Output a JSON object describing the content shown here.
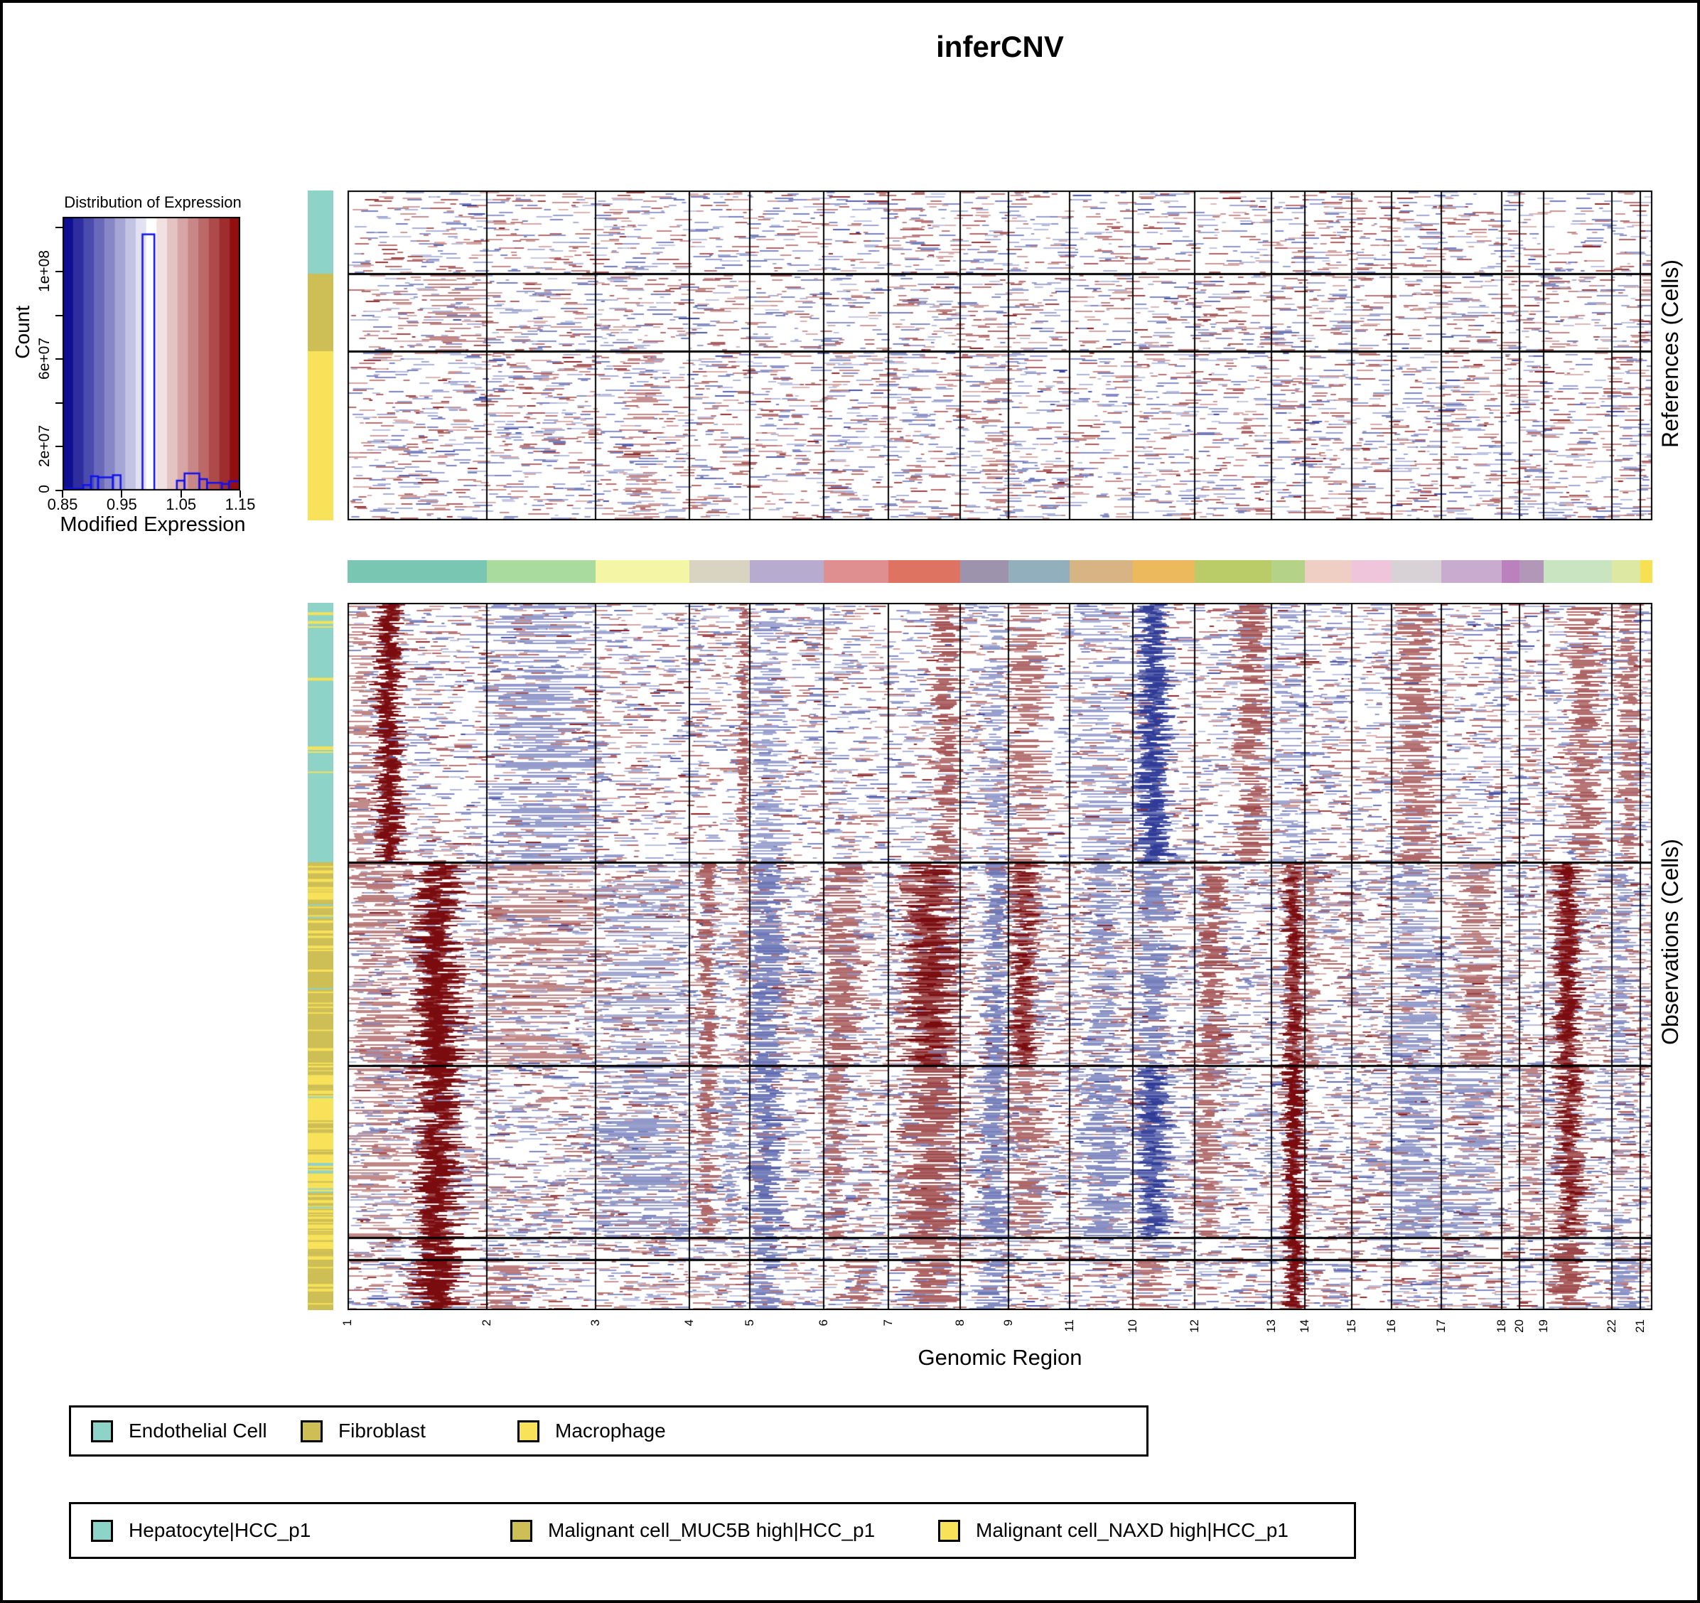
{
  "chart_data": {
    "type": "heatmap",
    "title": "inferCNV",
    "xlabel": "Genomic Region",
    "panel_labels": {
      "top": "References (Cells)",
      "bottom": "Observations (Cells)"
    },
    "color_scale": {
      "min": 0.85,
      "mid": 1.0,
      "max": 1.15,
      "low_color": "#00008B",
      "mid_color": "#FFFFFF",
      "high_color": "#8B0000",
      "steps": 17
    },
    "distribution": {
      "title": "Distribution of Expression",
      "xlabel": "Modified Expression",
      "ylabel": "Count",
      "xticks": [
        "0.85",
        "0.95",
        "1.05",
        "1.15"
      ],
      "xtick_values": [
        0.85,
        0.95,
        1.05,
        1.15
      ],
      "yticks": [
        "0",
        "2e+07",
        "6e+07",
        "1e+08"
      ],
      "ytick_values": [
        0,
        20000000,
        60000000,
        100000000
      ],
      "minor_ytick_values": [
        40000000,
        80000000,
        120000000
      ],
      "ymax": 125000000,
      "outline_color": "#1111EE",
      "bins": [
        [
          0.85,
          0.885,
          800000
        ],
        [
          0.885,
          0.898,
          2500000
        ],
        [
          0.898,
          0.91,
          6500000
        ],
        [
          0.91,
          0.935,
          6000000
        ],
        [
          0.935,
          0.948,
          7000000
        ],
        [
          0.948,
          0.985,
          200000
        ],
        [
          0.985,
          1.005,
          117000000
        ],
        [
          1.005,
          1.043,
          150000
        ],
        [
          1.043,
          1.056,
          4500000
        ],
        [
          1.056,
          1.081,
          7800000
        ],
        [
          1.081,
          1.094,
          5200000
        ],
        [
          1.094,
          1.119,
          3500000
        ],
        [
          1.119,
          1.131,
          3000000
        ],
        [
          1.131,
          1.15,
          4200000
        ]
      ]
    },
    "chromosomes": [
      {
        "label": "1",
        "width": 196,
        "color": "#79C7B2"
      },
      {
        "label": "2",
        "width": 153,
        "color": "#A9DB9F"
      },
      {
        "label": "3",
        "width": 132,
        "color": "#F5F5A6"
      },
      {
        "label": "4",
        "width": 85,
        "color": "#D9D3C2"
      },
      {
        "label": "5",
        "width": 104,
        "color": "#B7ABD0"
      },
      {
        "label": "6",
        "width": 91,
        "color": "#DF8F90"
      },
      {
        "label": "7",
        "width": 101,
        "color": "#DF7361"
      },
      {
        "label": "8",
        "width": 68,
        "color": "#9E93AD"
      },
      {
        "label": "9",
        "width": 86,
        "color": "#92AFBE"
      },
      {
        "label": "11",
        "width": 89,
        "color": "#D8B384"
      },
      {
        "label": "10",
        "width": 87,
        "color": "#ECB95D"
      },
      {
        "label": "12",
        "width": 108,
        "color": "#B9CC68"
      },
      {
        "label": "13",
        "width": 47,
        "color": "#B5D289"
      },
      {
        "label": "14",
        "width": 66,
        "color": "#EFCEC3"
      },
      {
        "label": "15",
        "width": 56,
        "color": "#EFC5DC"
      },
      {
        "label": "16",
        "width": 70,
        "color": "#D8D1D6"
      },
      {
        "label": "17",
        "width": 85,
        "color": "#C8ABCE"
      },
      {
        "label": "18",
        "width": 25,
        "color": "#BB81BF"
      },
      {
        "label": "20",
        "width": 34,
        "color": "#B297B9"
      },
      {
        "label": "19",
        "width": 96,
        "color": "#C8E4C1"
      },
      {
        "label": "22",
        "width": 40,
        "color": "#DDE8A2"
      },
      {
        "label": "21",
        "width": 17,
        "color": "#F7E052"
      }
    ],
    "reference_groups": [
      {
        "name": "Endothelial Cell",
        "color": "#8DD3C7",
        "y0": 0.0,
        "y1": 0.252,
        "noise": [
          7,
          6
        ],
        "stripes": [],
        "bands": []
      },
      {
        "name": "Fibroblast",
        "color": "#CDBE55",
        "y0": 0.252,
        "y1": 0.487,
        "noise": [
          8,
          6
        ],
        "stripes": [],
        "bands": [
          {
            "c": "1",
            "x0": 0.55,
            "x1": 1.0,
            "col": "r",
            "s": 0.2
          }
        ]
      },
      {
        "name": "Macrophage",
        "color": "#F7E25A",
        "y0": 0.487,
        "y1": 1.0,
        "noise": [
          8,
          7
        ],
        "stripes": [],
        "bands": [
          {
            "c": "3",
            "x0": 0.3,
            "x1": 0.7,
            "col": "r",
            "s": 0.15
          },
          {
            "c": "8",
            "x0": 0.5,
            "x1": 1.0,
            "col": "r",
            "s": 0.15
          }
        ]
      }
    ],
    "observation_groups": [
      {
        "name": "Hepatocyte|HCC_p1",
        "color": "#8DD3C7",
        "y0": 0.0,
        "y1": 0.367,
        "noise": [
          9,
          9
        ],
        "stripes": [
          [
            "#F7E25A",
            9
          ]
        ],
        "bands": [
          {
            "c": "1",
            "x0": 0.2,
            "x1": 0.4,
            "col": "r",
            "s": 0.95
          },
          {
            "c": "1",
            "x0": 0.0,
            "x1": 0.2,
            "col": "r",
            "s": 0.2
          },
          {
            "c": "2",
            "x0": 0.0,
            "x1": 1.0,
            "col": "b",
            "s": 0.25
          },
          {
            "c": "4",
            "x0": 0.8,
            "x1": 1.0,
            "col": "r",
            "s": 0.5
          },
          {
            "c": "5",
            "x0": 0.0,
            "x1": 0.5,
            "col": "b",
            "s": 0.2
          },
          {
            "c": "7",
            "x0": 0.6,
            "x1": 1.0,
            "col": "r",
            "s": 0.5
          },
          {
            "c": "8",
            "x0": 0.5,
            "x1": 1.0,
            "col": "b",
            "s": 0.2
          },
          {
            "c": "9",
            "x0": 0.0,
            "x1": 0.6,
            "col": "r",
            "s": 0.35
          },
          {
            "c": "11",
            "x0": 0.0,
            "x1": 1.0,
            "col": "b",
            "s": 0.2
          },
          {
            "c": "10",
            "x0": 0.05,
            "x1": 0.6,
            "col": "b",
            "s": 0.85
          },
          {
            "c": "12",
            "x0": 0.55,
            "x1": 0.95,
            "col": "r",
            "s": 0.5
          },
          {
            "c": "13",
            "x0": 0.0,
            "x1": 1.0,
            "col": "b",
            "s": 0.15
          },
          {
            "c": "16",
            "x0": 0.1,
            "x1": 0.9,
            "col": "r",
            "s": 0.4
          },
          {
            "c": "19",
            "x0": 0.35,
            "x1": 0.85,
            "col": "r",
            "s": 0.45
          },
          {
            "c": "22",
            "x0": 0.2,
            "x1": 1.0,
            "col": "r",
            "s": 0.4
          }
        ]
      },
      {
        "name": "Malignant cell_MUC5B high|HCC_p1",
        "color": "#CDBE55",
        "y0": 0.367,
        "y1": 0.654,
        "noise": [
          15,
          11
        ],
        "stripes": [
          [
            "#F7E25A",
            30
          ],
          [
            "#8DD3C7",
            3
          ]
        ],
        "bands": [
          {
            "c": "1",
            "x0": 0.47,
            "x1": 0.82,
            "col": "r",
            "s": 1.0
          },
          {
            "c": "1",
            "x0": 0.0,
            "x1": 0.45,
            "col": "r",
            "s": 0.25
          },
          {
            "c": "2",
            "x0": 0.0,
            "x1": 1.0,
            "col": "r",
            "s": 0.2
          },
          {
            "c": "3",
            "x0": 0.0,
            "x1": 1.0,
            "col": "b",
            "s": 0.15
          },
          {
            "c": "4",
            "x0": 0.15,
            "x1": 0.45,
            "col": "r",
            "s": 0.5
          },
          {
            "c": "4",
            "x0": 0.8,
            "x1": 1.0,
            "col": "r",
            "s": 0.3
          },
          {
            "c": "5",
            "x0": 0.0,
            "x1": 0.45,
            "col": "b",
            "s": 0.55
          },
          {
            "c": "6",
            "x0": 0.0,
            "x1": 0.55,
            "col": "r",
            "s": 0.45
          },
          {
            "c": "7",
            "x0": 0.2,
            "x1": 1.0,
            "col": "r",
            "s": 0.7
          },
          {
            "c": "8",
            "x0": 0.5,
            "x1": 1.0,
            "col": "b",
            "s": 0.5
          },
          {
            "c": "9",
            "x0": 0.0,
            "x1": 0.5,
            "col": "r",
            "s": 0.65
          },
          {
            "c": "11",
            "x0": 0.3,
            "x1": 0.8,
            "col": "b",
            "s": 0.35
          },
          {
            "c": "10",
            "x0": 0.05,
            "x1": 0.6,
            "col": "b",
            "s": 0.45
          },
          {
            "c": "12",
            "x0": 0.05,
            "x1": 0.4,
            "col": "r",
            "s": 0.55
          },
          {
            "c": "13",
            "x0": 0.35,
            "x1": 1.0,
            "col": "r",
            "s": 0.7
          },
          {
            "c": "14",
            "x0": 0.0,
            "x1": 0.3,
            "col": "r",
            "s": 0.3
          },
          {
            "c": "16",
            "x0": 0.0,
            "x1": 1.0,
            "col": "b",
            "s": 0.25
          },
          {
            "c": "17",
            "x0": 0.3,
            "x1": 0.9,
            "col": "r",
            "s": 0.35
          },
          {
            "c": "19",
            "x0": 0.15,
            "x1": 0.55,
            "col": "r",
            "s": 0.85
          },
          {
            "c": "22",
            "x0": 0.0,
            "x1": 0.6,
            "col": "b",
            "s": 0.3
          }
        ]
      },
      {
        "name": "Malignant cell_NAXD high|HCC_p1",
        "color": "#F7E25A",
        "y0": 0.654,
        "y1": 0.897,
        "noise": [
          12,
          13
        ],
        "stripes": [
          [
            "#CDBE55",
            34
          ],
          [
            "#8DD3C7",
            6
          ]
        ],
        "bands": [
          {
            "c": "1",
            "x0": 0.47,
            "x1": 0.82,
            "col": "r",
            "s": 1.0
          },
          {
            "c": "1",
            "x0": 0.0,
            "x1": 0.45,
            "col": "r",
            "s": 0.18
          },
          {
            "c": "3",
            "x0": 0.0,
            "x1": 1.0,
            "col": "b",
            "s": 0.3
          },
          {
            "c": "4",
            "x0": 0.15,
            "x1": 0.45,
            "col": "r",
            "s": 0.45
          },
          {
            "c": "4",
            "x0": 0.55,
            "x1": 0.8,
            "col": "b",
            "s": 0.3
          },
          {
            "c": "5",
            "x0": 0.0,
            "x1": 0.45,
            "col": "b",
            "s": 0.6
          },
          {
            "c": "6",
            "x0": 0.0,
            "x1": 0.35,
            "col": "r",
            "s": 0.45
          },
          {
            "c": "7",
            "x0": 0.2,
            "x1": 1.0,
            "col": "r",
            "s": 0.6
          },
          {
            "c": "8",
            "x0": 0.4,
            "x1": 1.0,
            "col": "b",
            "s": 0.45
          },
          {
            "c": "9",
            "x0": 0.0,
            "x1": 0.6,
            "col": "r",
            "s": 0.4
          },
          {
            "c": "11",
            "x0": 0.2,
            "x1": 0.9,
            "col": "b",
            "s": 0.4
          },
          {
            "c": "10",
            "x0": 0.05,
            "x1": 0.6,
            "col": "b",
            "s": 0.7
          },
          {
            "c": "12",
            "x0": 0.0,
            "x1": 0.35,
            "col": "r",
            "s": 0.4
          },
          {
            "c": "13",
            "x0": 0.35,
            "x1": 1.0,
            "col": "r",
            "s": 1.0
          },
          {
            "c": "16",
            "x0": 0.0,
            "x1": 1.0,
            "col": "b",
            "s": 0.3
          },
          {
            "c": "17",
            "x0": 0.0,
            "x1": 1.0,
            "col": "b",
            "s": 0.25
          },
          {
            "c": "19",
            "x0": 0.15,
            "x1": 0.6,
            "col": "r",
            "s": 0.7
          },
          {
            "c": "20",
            "x0": 0.0,
            "x1": 1.0,
            "col": "r",
            "s": 0.25
          }
        ]
      },
      {
        "name": "Malignant cell_NAXD high|HCC_p1",
        "color": "#F7E25A",
        "y0": 0.897,
        "y1": 0.929,
        "noise": [
          12,
          12
        ],
        "stripes": [
          [
            "#CDBE55",
            5
          ]
        ],
        "bands": [
          {
            "c": "1",
            "x0": 0.47,
            "x1": 0.82,
            "col": "r",
            "s": 1.0
          },
          {
            "c": "5",
            "x0": 0.0,
            "x1": 0.45,
            "col": "b",
            "s": 0.5
          },
          {
            "c": "7",
            "x0": 0.3,
            "x1": 1.0,
            "col": "r",
            "s": 0.4
          },
          {
            "c": "10",
            "x0": 0.05,
            "x1": 0.6,
            "col": "b",
            "s": 0.5
          },
          {
            "c": "13",
            "x0": 0.35,
            "x1": 1.0,
            "col": "r",
            "s": 1.0
          },
          {
            "c": "19",
            "x0": 0.15,
            "x1": 0.6,
            "col": "r",
            "s": 0.6
          }
        ]
      },
      {
        "name": "Malignant cell_MUC5B high|HCC_p1",
        "color": "#CDBE55",
        "y0": 0.929,
        "y1": 1.0,
        "noise": [
          13,
          10
        ],
        "stripes": [
          [
            "#F7E25A",
            4
          ]
        ],
        "bands": [
          {
            "c": "1",
            "x0": 0.47,
            "x1": 0.82,
            "col": "r",
            "s": 1.0
          },
          {
            "c": "2",
            "x0": 0.0,
            "x1": 0.4,
            "col": "r",
            "s": 0.3
          },
          {
            "c": "5",
            "x0": 0.0,
            "x1": 0.45,
            "col": "b",
            "s": 0.5
          },
          {
            "c": "6",
            "x0": 0.3,
            "x1": 0.8,
            "col": "r",
            "s": 0.4
          },
          {
            "c": "7",
            "x0": 0.3,
            "x1": 1.0,
            "col": "r",
            "s": 0.5
          },
          {
            "c": "8",
            "x0": 0.3,
            "x1": 1.0,
            "col": "b",
            "s": 0.4
          },
          {
            "c": "10",
            "x0": 0.0,
            "x1": 0.5,
            "col": "r",
            "s": 0.35
          },
          {
            "c": "13",
            "x0": 0.35,
            "x1": 1.0,
            "col": "r",
            "s": 0.9
          },
          {
            "c": "19",
            "x0": 0.15,
            "x1": 0.6,
            "col": "r",
            "s": 0.6
          },
          {
            "c": "22",
            "x0": 0.0,
            "x1": 1.0,
            "col": "b",
            "s": 0.3
          }
        ]
      }
    ],
    "legends": [
      {
        "name": "reference-cell-types",
        "items": [
          {
            "label": "Endothelial Cell",
            "color": "#8DD3C7"
          },
          {
            "label": "Fibroblast",
            "color": "#CDBE55"
          },
          {
            "label": "Macrophage",
            "color": "#F7E25A"
          }
        ]
      },
      {
        "name": "observation-cell-types",
        "items": [
          {
            "label": "Hepatocyte|HCC_p1",
            "color": "#8DD3C7"
          },
          {
            "label": "Malignant cell_MUC5B high|HCC_p1",
            "color": "#CDBE55"
          },
          {
            "label": "Malignant cell_NAXD high|HCC_p1",
            "color": "#F7E25A"
          }
        ]
      }
    ]
  }
}
